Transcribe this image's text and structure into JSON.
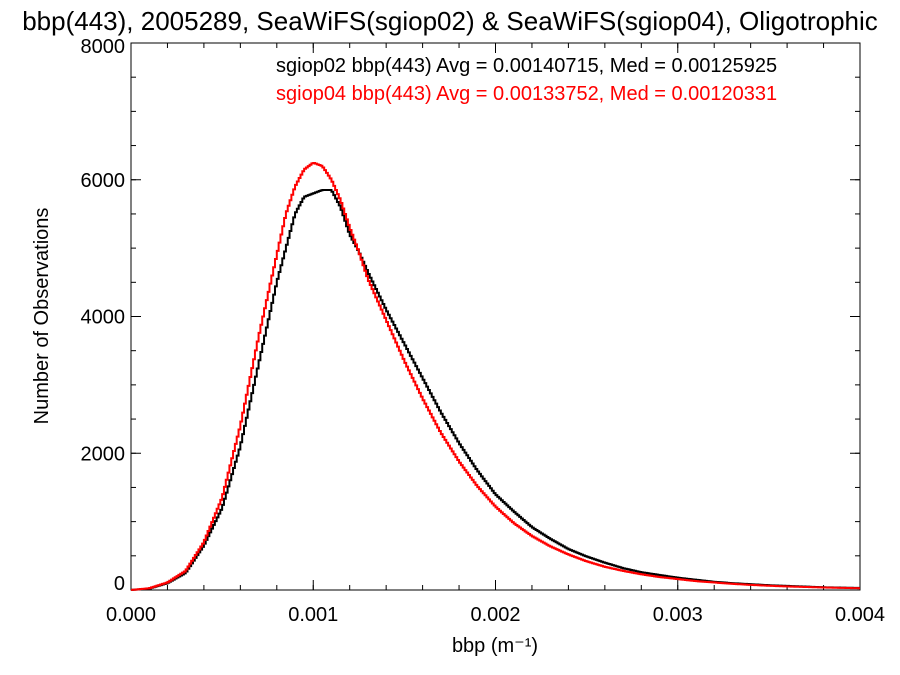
{
  "chart_data": {
    "type": "line",
    "title": "bbp(443), 2005289, SeaWiFS(sgiop02) & SeaWiFS(sgiop04), Oligotrophic",
    "xlabel": "bbp (m⁻¹)",
    "ylabel": "Number of Observations",
    "xlim": [
      0,
      0.004
    ],
    "ylim": [
      0,
      8000
    ],
    "x_ticks": [
      "0.000",
      "0.001",
      "0.002",
      "0.003",
      "0.004"
    ],
    "y_ticks": [
      "0",
      "2000",
      "4000",
      "6000",
      "8000"
    ],
    "grid": false,
    "annotations": [
      "sgiop02 bbp(443) Avg = 0.00140715, Med = 0.00125925",
      "sgiop04 bbp(443) Avg = 0.00133752, Med = 0.00120331"
    ],
    "colors": {
      "sgiop02": "#000000",
      "sgiop04": "#ff0000"
    },
    "series": [
      {
        "color": "#000000",
        "x": [
          0.0,
          0.0001,
          0.0002,
          0.0003,
          0.0004,
          0.0005,
          0.0006,
          0.0007,
          0.0008,
          0.00085,
          0.0009,
          0.00095,
          0.001,
          0.00105,
          0.0011,
          0.00115,
          0.0012,
          0.00125,
          0.0013,
          0.0014,
          0.0015,
          0.0016,
          0.0017,
          0.0018,
          0.0019,
          0.002,
          0.0021,
          0.0022,
          0.0023,
          0.0024,
          0.0025,
          0.0026,
          0.0027,
          0.0028,
          0.0029,
          0.003,
          0.0031,
          0.0032,
          0.0033,
          0.0034,
          0.0035,
          0.0036,
          0.0037,
          0.0038,
          0.0039,
          0.004
        ],
        "y": [
          0,
          20,
          100,
          250,
          650,
          1200,
          2100,
          3300,
          4500,
          5000,
          5500,
          5750,
          5800,
          5850,
          5850,
          5600,
          5200,
          4950,
          4650,
          4100,
          3600,
          3100,
          2600,
          2150,
          1750,
          1400,
          1150,
          920,
          750,
          600,
          490,
          400,
          320,
          260,
          220,
          180,
          150,
          120,
          100,
          85,
          70,
          60,
          50,
          40,
          35,
          30
        ]
      },
      {
        "color": "#ff0000",
        "x": [
          0.0,
          0.0001,
          0.0002,
          0.0003,
          0.0004,
          0.0005,
          0.0006,
          0.0007,
          0.0008,
          0.00085,
          0.0009,
          0.00095,
          0.001,
          0.00105,
          0.0011,
          0.00115,
          0.0012,
          0.00125,
          0.0013,
          0.0014,
          0.0015,
          0.0016,
          0.0017,
          0.0018,
          0.0019,
          0.002,
          0.0021,
          0.0022,
          0.0023,
          0.0024,
          0.0025,
          0.0026,
          0.0027,
          0.0028,
          0.0029,
          0.003,
          0.0031,
          0.0032,
          0.0033,
          0.0034,
          0.0035,
          0.0036,
          0.0037,
          0.0038,
          0.0039,
          0.004
        ],
        "y": [
          0,
          25,
          110,
          280,
          700,
          1350,
          2400,
          3700,
          4900,
          5500,
          5900,
          6150,
          6250,
          6200,
          6000,
          5700,
          5300,
          4950,
          4550,
          3950,
          3350,
          2800,
          2300,
          1880,
          1520,
          1220,
          980,
          790,
          640,
          520,
          420,
          340,
          280,
          230,
          190,
          160,
          130,
          110,
          90,
          75,
          62,
          52,
          44,
          37,
          31,
          26
        ]
      }
    ]
  }
}
